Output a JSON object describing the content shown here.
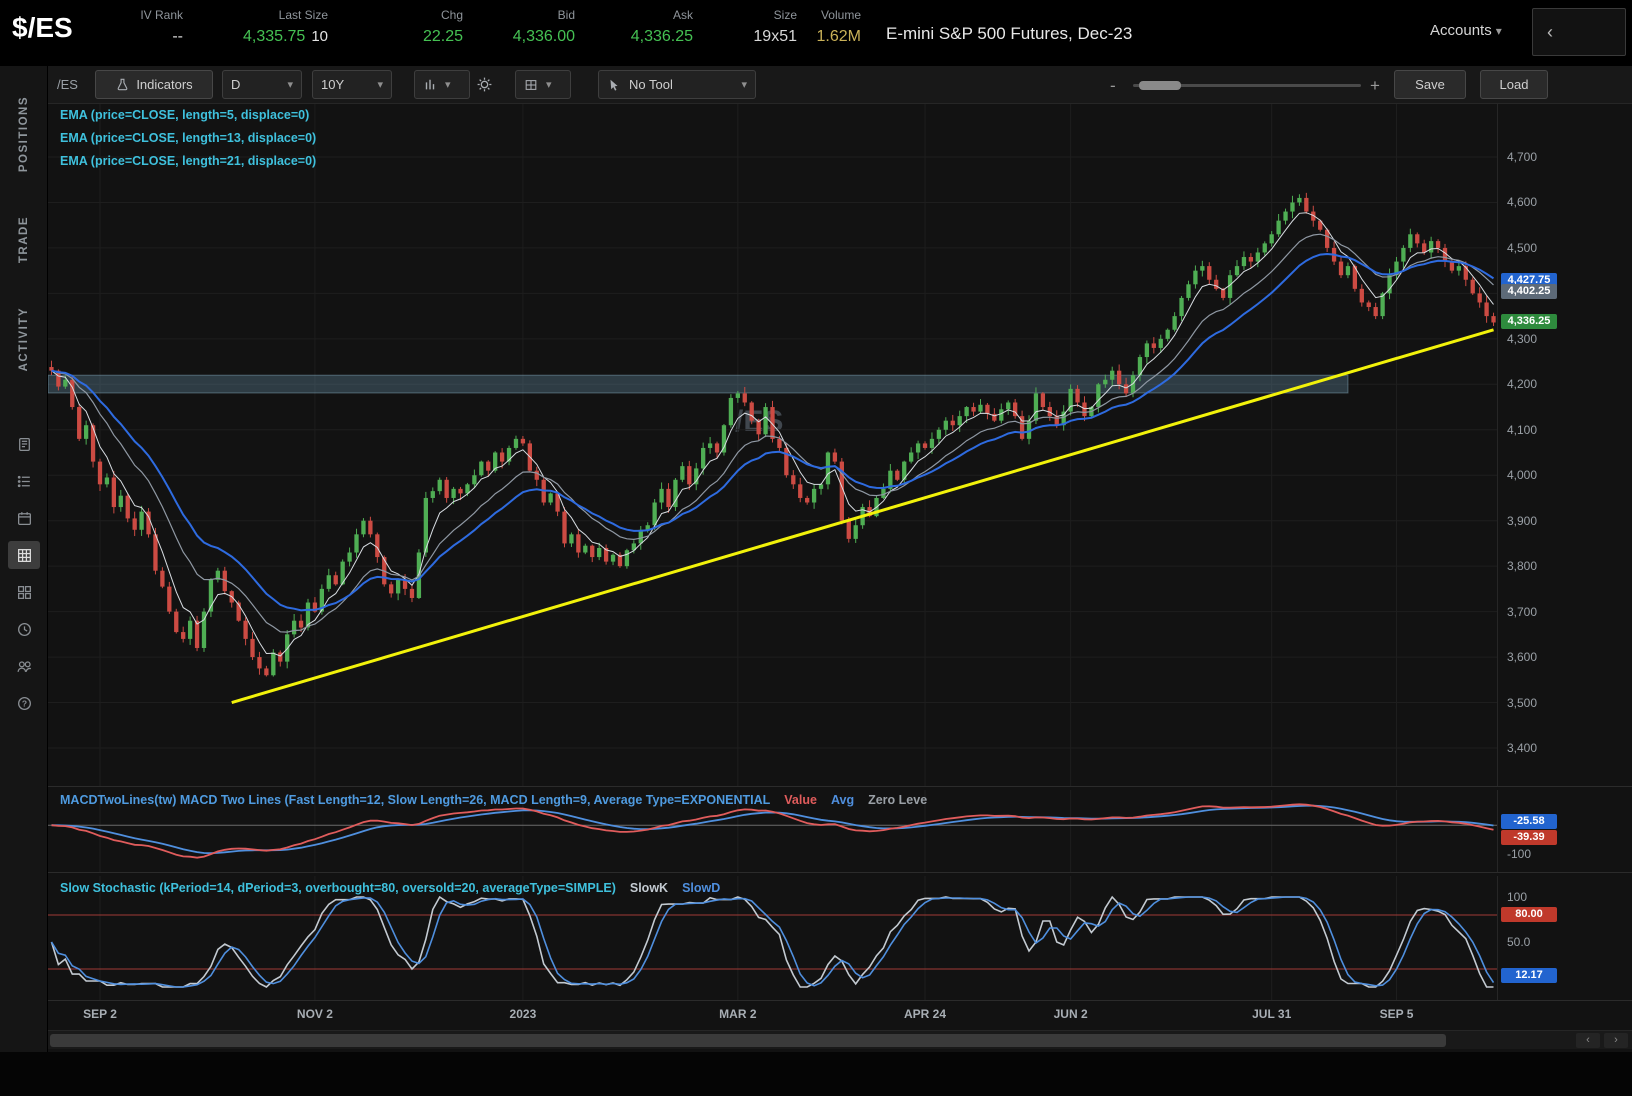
{
  "header": {
    "symbol": "$/ES",
    "title": "E-mini S&P 500 Futures, Dec-23",
    "accounts_label": "Accounts",
    "collapse_glyph": "‹",
    "fields": [
      {
        "label": "IV Rank",
        "value": "--",
        "class": "white"
      },
      {
        "label": "Last Size",
        "value": "4,335.75",
        "extra": "10",
        "class": "green"
      },
      {
        "label": "Chg",
        "value": "22.25",
        "class": "green"
      },
      {
        "label": "Bid",
        "value": "4,336.00",
        "class": "green"
      },
      {
        "label": "Ask",
        "value": "4,336.25",
        "class": "green"
      },
      {
        "label": "Size",
        "value": "19x51",
        "class": "white"
      },
      {
        "label": "Volume",
        "value": "1.62M",
        "class": "yellow"
      }
    ]
  },
  "sidebar": {
    "tabs": [
      {
        "label": "POSITIONS"
      },
      {
        "label": "TRADE"
      },
      {
        "label": "ACTIVITY"
      }
    ],
    "icons": [
      {
        "name": "notes-icon",
        "active": false
      },
      {
        "name": "list-icon",
        "active": false
      },
      {
        "name": "calendar-icon",
        "active": false
      },
      {
        "name": "chart-grid-icon",
        "active": true
      },
      {
        "name": "apps-icon",
        "active": false
      },
      {
        "name": "clock-icon",
        "active": false
      },
      {
        "name": "people-icon",
        "active": false
      },
      {
        "name": "help-icon",
        "active": false
      }
    ]
  },
  "toolbar": {
    "symbol_label": "/ES",
    "buttons": {
      "indicators": "Indicators",
      "save": "Save",
      "load": "Load"
    },
    "dropdowns": {
      "aggregation": "D",
      "range": "10Y",
      "tool": "No Tool"
    },
    "zoom": {
      "minus": "-",
      "plus": "+"
    }
  },
  "chart": {
    "watermark": "/ES",
    "legend_color": "#3fc1dd",
    "legend": [
      "EMA (price=CLOSE, length=5, displace=0)",
      "EMA (price=CLOSE, length=13, displace=0)",
      "EMA (price=CLOSE, length=21, displace=0)"
    ],
    "price_axis": [
      {
        "label": "4,700",
        "price": 4700
      },
      {
        "label": "4,600",
        "price": 4600
      },
      {
        "label": "4,500",
        "price": 4500
      },
      {
        "label": "4,400",
        "price": 4400
      },
      {
        "label": "4,300",
        "price": 4300
      },
      {
        "label": "4,200",
        "price": 4200
      },
      {
        "label": "4,100",
        "price": 4100
      },
      {
        "label": "4,000",
        "price": 4000
      },
      {
        "label": "3,900",
        "price": 3900
      },
      {
        "label": "3,800",
        "price": 3800
      },
      {
        "label": "3,700",
        "price": 3700
      },
      {
        "label": "3,600",
        "price": 3600
      },
      {
        "label": "3,500",
        "price": 3500
      },
      {
        "label": "3,400",
        "price": 3400
      }
    ],
    "price_badges": [
      {
        "text": "4,427.75",
        "bg": "#2264cf",
        "price": 4427.75
      },
      {
        "text": "4,402.25",
        "bg": "#5d6a78",
        "price": 4402.25
      },
      {
        "text": "4,336.25",
        "bg": "#2e8b3d",
        "price": 4336.25
      }
    ]
  },
  "chart_data": {
    "type": "candlestick",
    "symbol": "/ES",
    "aggregation": "D",
    "axis_min": 3400,
    "axis_max": 4700,
    "axis_step": 100,
    "last_price": 4336.25,
    "closes": [
      4230,
      4195,
      4210,
      4150,
      4080,
      4110,
      4030,
      3980,
      3995,
      3930,
      3955,
      3905,
      3880,
      3920,
      3870,
      3790,
      3755,
      3700,
      3655,
      3640,
      3680,
      3620,
      3700,
      3770,
      3790,
      3745,
      3720,
      3680,
      3640,
      3600,
      3575,
      3560,
      3610,
      3590,
      3650,
      3680,
      3665,
      3720,
      3700,
      3750,
      3780,
      3760,
      3810,
      3830,
      3870,
      3900,
      3870,
      3820,
      3760,
      3740,
      3770,
      3750,
      3730,
      3830,
      3950,
      3965,
      3990,
      3950,
      3970,
      3960,
      3980,
      4000,
      4030,
      4010,
      4050,
      4030,
      4060,
      4080,
      4070,
      4010,
      3990,
      3940,
      3960,
      3920,
      3850,
      3870,
      3830,
      3845,
      3820,
      3840,
      3810,
      3825,
      3800,
      3835,
      3850,
      3880,
      3890,
      3940,
      3970,
      3930,
      3990,
      4020,
      3980,
      4015,
      4060,
      4070,
      4050,
      4110,
      4170,
      4180,
      4160,
      4120,
      4090,
      4150,
      4080,
      4060,
      4000,
      3980,
      3950,
      3940,
      3970,
      3980,
      4050,
      4030,
      3900,
      3860,
      3890,
      3930,
      3910,
      3950,
      3970,
      4010,
      3990,
      4030,
      4050,
      4070,
      4060,
      4080,
      4100,
      4120,
      4110,
      4130,
      4150,
      4140,
      4155,
      4135,
      4120,
      4145,
      4160,
      4130,
      4080,
      4120,
      4180,
      4150,
      4130,
      4110,
      4140,
      4190,
      4160,
      4130,
      4150,
      4200,
      4210,
      4230,
      4200,
      4180,
      4220,
      4260,
      4290,
      4280,
      4300,
      4320,
      4350,
      4390,
      4420,
      4450,
      4460,
      4430,
      4410,
      4390,
      4440,
      4460,
      4480,
      4470,
      4490,
      4510,
      4530,
      4560,
      4580,
      4600,
      4610,
      4580,
      4560,
      4540,
      4500,
      4470,
      4440,
      4460,
      4410,
      4380,
      4370,
      4350,
      4400,
      4440,
      4470,
      4500,
      4530,
      4510,
      4490,
      4515,
      4500,
      4470,
      4450,
      4460,
      4430,
      4400,
      4380,
      4350,
      4336
    ],
    "emas": [
      {
        "length": 5,
        "color": "#d8dde2",
        "width": 1
      },
      {
        "length": 13,
        "color": "#8f98a3",
        "width": 1.2
      },
      {
        "length": 21,
        "color": "#2e6be0",
        "width": 2
      }
    ],
    "candle_up_color": "#4fae54",
    "candle_down_color": "#cc4b43",
    "trendline": {
      "from_index": 26,
      "from_price": 3500,
      "to_index": 208,
      "to_price": 4320,
      "color": "#f2f20a",
      "width": 3
    },
    "zone": {
      "from_index": 0,
      "to_index": 187,
      "top_price": 4220,
      "bottom_price": 4181,
      "fill": "rgba(105,150,175,0.32)",
      "border": "rgba(140,180,200,0.45)"
    },
    "date_ticks": [
      {
        "label": "SEP 2",
        "index": 7
      },
      {
        "label": "NOV 2",
        "index": 38
      },
      {
        "label": "2023",
        "index": 68
      },
      {
        "label": "MAR 2",
        "index": 99
      },
      {
        "label": "APR 24",
        "index": 126
      },
      {
        "label": "JUN 2",
        "index": 147
      },
      {
        "label": "JUL 31",
        "index": 176
      },
      {
        "label": "SEP 5",
        "index": 194
      }
    ]
  },
  "macd": {
    "title": "MACDTwoLines(tw) MACD Two Lines (Fast Length=12, Slow Length=26, MACD Length=9, Average Type=EXPONENTIAL",
    "title_color": "#4f9be0",
    "legend": [
      {
        "text": "Value",
        "color": "#e05c5c"
      },
      {
        "text": "Avg",
        "color": "#4f8fde"
      },
      {
        "text": "Zero Leve",
        "color": "#9aa0a6"
      }
    ],
    "params": {
      "fast": 12,
      "slow": 26,
      "signal": 9
    },
    "value_color": "#e05c5c",
    "avg_color": "#4f8fde",
    "badges": [
      {
        "text": "-25.58",
        "bg": "#2264cf"
      },
      {
        "text": "-39.39",
        "bg": "#c0392b"
      }
    ],
    "axis_label": "-100"
  },
  "stoch": {
    "title": "Slow Stochastic (kPeriod=14, dPeriod=3, overbought=80, oversold=20, averageType=SIMPLE)",
    "title_color": "#3fc1dd",
    "legend": [
      {
        "text": "SlowK",
        "color": "#c3cad1"
      },
      {
        "text": "SlowD",
        "color": "#4f8fde"
      }
    ],
    "params": {
      "k": 14,
      "d": 3,
      "overbought": 80,
      "oversold": 20
    },
    "slowk_color": "#c3cad1",
    "slowd_color": "#4f8fde",
    "band_color": "#a03b35",
    "axis_labels": [
      {
        "text": "100",
        "v": 100
      },
      {
        "text": "50.0",
        "v": 50
      }
    ],
    "badges": [
      {
        "text": "80.00",
        "bg": "#c0392b",
        "v": 80
      },
      {
        "text": "12.17",
        "bg": "#2264cf",
        "v": 12.17
      }
    ]
  },
  "scrollbar": {
    "left_glyph": "‹",
    "right_glyph": "›"
  }
}
